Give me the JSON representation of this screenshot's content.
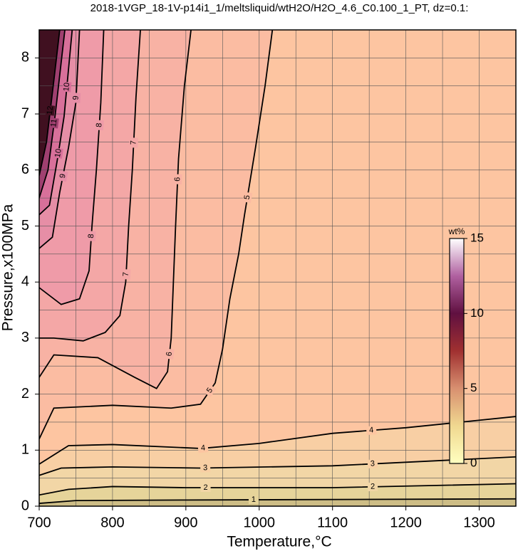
{
  "chart_data": {
    "type": "contour",
    "title": "2018-1VGP_18-1V-p14i1_1/meltsliquid/wtH2O/H2O_4.6_C0.100_1_PT, dz=0.1:",
    "x_label": "Temperature,°C",
    "y_label": "Pressure,x100MPa",
    "xlim": [
      700,
      1350
    ],
    "ylim": [
      0,
      8.5
    ],
    "xticks": [
      700,
      800,
      900,
      1000,
      1100,
      1200,
      1300
    ],
    "yticks": [
      0,
      1,
      2,
      3,
      4,
      5,
      6,
      7,
      8
    ],
    "xgrid": [
      750,
      800,
      850,
      900,
      950,
      1000,
      1050,
      1100,
      1150,
      1200,
      1250,
      1300
    ],
    "ygrid": [
      0.5,
      1,
      1.5,
      2,
      2.5,
      3,
      3.5,
      4,
      4.5,
      5,
      5.5,
      6,
      6.5,
      7,
      7.5,
      8
    ],
    "grid": true,
    "background_color": "#cdbd86",
    "contours": [
      {
        "level": 1,
        "fill": "#e6d49a",
        "x": [
          700,
          750,
          900,
          1350
        ],
        "y": [
          0.05,
          0.1,
          0.11,
          0.13
        ]
      },
      {
        "level": 2,
        "fill": "#f2d6a6",
        "x": [
          700,
          740,
          800,
          900,
          1100,
          1350
        ],
        "y": [
          0.2,
          0.3,
          0.35,
          0.33,
          0.33,
          0.4
        ]
      },
      {
        "level": 3,
        "fill": "#f8cfa4",
        "x": [
          700,
          730,
          800,
          920,
          1100,
          1350
        ],
        "y": [
          0.55,
          0.68,
          0.7,
          0.68,
          0.72,
          0.88
        ]
      },
      {
        "level": 4,
        "fill": "#fdc5a1",
        "x": [
          700,
          740,
          800,
          920,
          1000,
          1100,
          1200,
          1350
        ],
        "y": [
          0.75,
          1.08,
          1.1,
          1.03,
          1.12,
          1.3,
          1.4,
          1.6
        ]
      },
      {
        "level": 5,
        "fill": "#fbbca2",
        "x": [
          700,
          720,
          800,
          880,
          920,
          940,
          950,
          960,
          972,
          980,
          995,
          1008,
          1018
        ],
        "y": [
          1.2,
          1.75,
          1.8,
          1.75,
          1.82,
          2.2,
          2.8,
          3.7,
          4.5,
          5.2,
          6.4,
          7.5,
          8.5
        ]
      },
      {
        "level": 6,
        "fill": "#f8b2a4",
        "x": [
          700,
          720,
          780,
          830,
          860,
          875,
          880,
          883,
          886,
          890,
          898,
          907
        ],
        "y": [
          2.3,
          2.7,
          2.65,
          2.3,
          2.1,
          2.4,
          3.0,
          4.0,
          5.0,
          6.2,
          7.5,
          8.5
        ]
      },
      {
        "level": 7,
        "fill": "#f4a7a6",
        "x": [
          700,
          720,
          760,
          790,
          810,
          818,
          822,
          827,
          832,
          838
        ],
        "y": [
          3.0,
          3.0,
          2.95,
          3.1,
          3.4,
          4.0,
          5.0,
          6.0,
          7.3,
          8.5
        ]
      },
      {
        "level": 8,
        "fill": "#ef9ba8",
        "x": [
          700,
          730,
          755,
          768,
          772,
          778,
          784,
          788
        ],
        "y": [
          3.9,
          3.6,
          3.7,
          4.2,
          5.0,
          6.0,
          7.2,
          8.5
        ]
      },
      {
        "level": 9,
        "fill": "#e68ea6",
        "x": [
          700,
          718,
          728,
          740,
          750,
          755
        ],
        "y": [
          4.6,
          4.8,
          5.6,
          6.4,
          7.2,
          8.5
        ]
      },
      {
        "level": 10,
        "fill": "#d8709a",
        "x": [
          700,
          714,
          725,
          734,
          745
        ],
        "y": [
          5.2,
          5.37,
          6.2,
          6.96,
          8.5
        ]
      },
      {
        "level": 11,
        "fill": "#a04070",
        "x": [
          700,
          712,
          722,
          735
        ],
        "y": [
          5.5,
          6.0,
          7.0,
          8.5
        ]
      },
      {
        "level": 12,
        "fill": "#401020",
        "x": [
          700,
          710,
          720,
          728
        ],
        "y": [
          5.9,
          6.5,
          7.6,
          8.5
        ]
      }
    ],
    "colorbar": {
      "label": "wt%",
      "lim": [
        0,
        15
      ],
      "ticks": [
        0,
        5,
        10,
        15
      ],
      "colormap": [
        "#ffffc0",
        "#f0d890",
        "#d89070",
        "#a03030",
        "#601040",
        "#b060a0",
        "#ffffff"
      ]
    }
  }
}
